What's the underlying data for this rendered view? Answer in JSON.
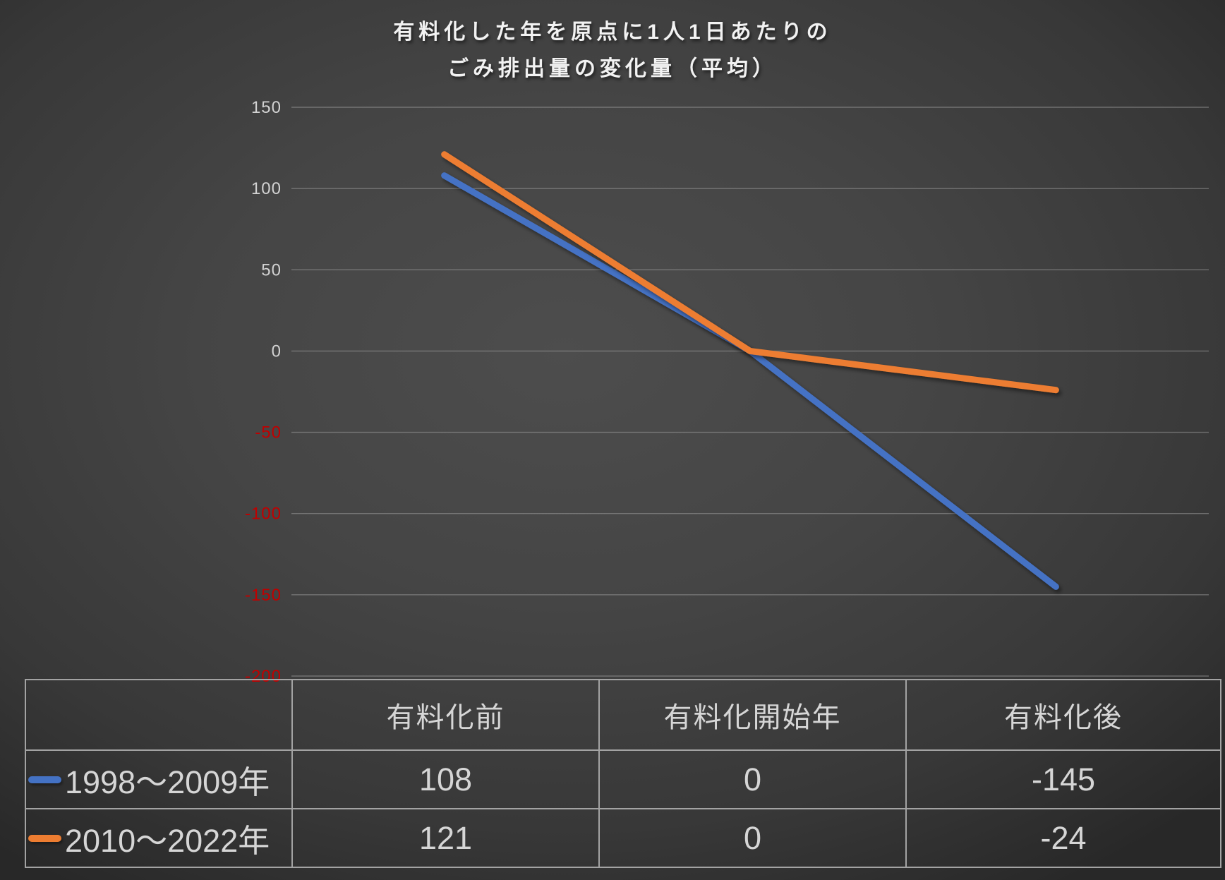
{
  "title": {
    "line1": "有料化した年を原点に1人1日あたりの",
    "line2": "ごみ排出量の変化量（平均）"
  },
  "chart_data": {
    "type": "line",
    "title": "有料化した年を原点に1人1日あたりの ごみ排出量の変化量（平均）",
    "categories": [
      "有料化前",
      "有料化開始年",
      "有料化後"
    ],
    "series": [
      {
        "name": "1998～2009年",
        "values": [
          108,
          0,
          -145
        ],
        "color": "#4472C4"
      },
      {
        "name": "2010～2022年",
        "values": [
          121,
          0,
          -24
        ],
        "color": "#ED7D31"
      }
    ],
    "ylim": [
      -200,
      150
    ],
    "yticks": [
      150,
      100,
      50,
      0,
      -50,
      -100,
      -150,
      -200
    ],
    "ytick_color_positive": "#d2d2d2",
    "ytick_color_negative": "#c00000",
    "grid": true,
    "gridline_color": "#a6a6a6",
    "xlabel": "",
    "ylabel": "",
    "legend_position": "data-table"
  }
}
